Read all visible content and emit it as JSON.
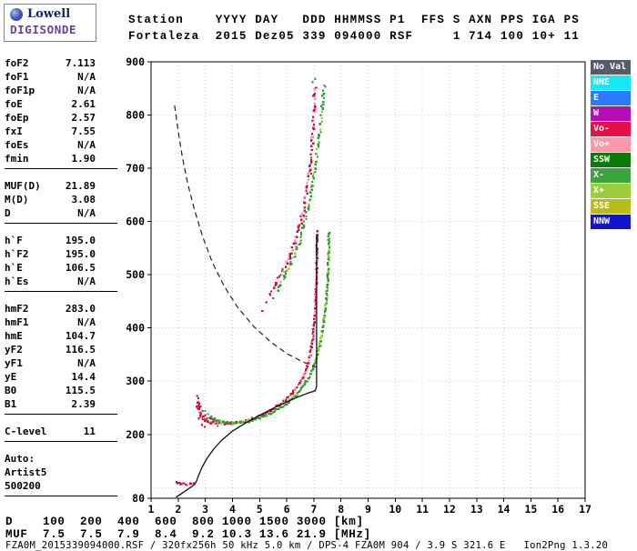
{
  "logo": {
    "brand": "Lowell",
    "product": "DIGISONDE"
  },
  "header": {
    "line1": "Station    YYYY DAY   DDD HHMMSS P1  FFS S AXN PPS IGA PS",
    "line2": "Fortaleza  2015 Dez05 339 094000 RSF     1 714 100 10+ 11"
  },
  "params": {
    "rows": [
      {
        "label": "foF2",
        "value": "7.113"
      },
      {
        "label": "foF1",
        "value": "N/A"
      },
      {
        "label": "foF1p",
        "value": "N/A"
      },
      {
        "label": "foE",
        "value": "2.61"
      },
      {
        "label": "foEp",
        "value": "2.57"
      },
      {
        "label": "fxI",
        "value": "7.55"
      },
      {
        "label": "foEs",
        "value": "N/A"
      },
      {
        "label": "fmin",
        "value": "1.90",
        "rule": true
      },
      {
        "label": "MUF(D)",
        "value": "21.89"
      },
      {
        "label": "M(D)",
        "value": "3.08"
      },
      {
        "label": "D",
        "value": "N/A",
        "rule": true
      },
      {
        "label": "h`F",
        "value": "195.0"
      },
      {
        "label": "h`F2",
        "value": "195.0"
      },
      {
        "label": "h`E",
        "value": "106.5"
      },
      {
        "label": "h`Es",
        "value": "N/A",
        "rule": true
      },
      {
        "label": "hmF2",
        "value": "283.0"
      },
      {
        "label": "hmF1",
        "value": "N/A"
      },
      {
        "label": "hmE",
        "value": "104.7"
      },
      {
        "label": "yF2",
        "value": "116.5"
      },
      {
        "label": "yF1",
        "value": "N/A"
      },
      {
        "label": "yE",
        "value": "14.4"
      },
      {
        "label": "B0",
        "value": "115.5"
      },
      {
        "label": "B1",
        "value": "2.39",
        "rule": true
      },
      {
        "label": "C-level",
        "value": "11",
        "rule": true
      }
    ],
    "auto": [
      "Auto:",
      "Artist5",
      "500200"
    ]
  },
  "legend": [
    {
      "label": "No Val",
      "color": "#565b6b"
    },
    {
      "label": "NNE",
      "color": "#17e7f7"
    },
    {
      "label": "E",
      "color": "#2b7bff"
    },
    {
      "label": "W",
      "color": "#b60cb6"
    },
    {
      "label": "Vo-",
      "color": "#e51046"
    },
    {
      "label": "Vo+",
      "color": "#ff97a6"
    },
    {
      "label": "SSW",
      "color": "#0a7a0a"
    },
    {
      "label": "X-",
      "color": "#3aa53a"
    },
    {
      "label": "X+",
      "color": "#9ccc3c"
    },
    {
      "label": "SSE",
      "color": "#b8bc18"
    },
    {
      "label": "NNW",
      "color": "#1414cc"
    }
  ],
  "chart_data": {
    "type": "scatter",
    "title": "",
    "xlabel": "",
    "ylabel": "",
    "xlim": [
      1,
      17
    ],
    "ylim": [
      80,
      900
    ],
    "xticks": [
      1,
      2,
      3,
      4,
      5,
      6,
      7,
      8,
      9,
      10,
      11,
      12,
      13,
      14,
      15,
      16,
      17
    ],
    "yticks": [
      900,
      800,
      700,
      600,
      500,
      400,
      300,
      200,
      80
    ],
    "grid": true,
    "series": [
      {
        "name": "F-trace-O-mode",
        "color": "#cf0e3f",
        "alt": "#ff8fa6",
        "points": [
          [
            2.72,
            262
          ],
          [
            2.76,
            250
          ],
          [
            2.8,
            240
          ],
          [
            2.87,
            232
          ],
          [
            2.97,
            227
          ],
          [
            3.1,
            224
          ],
          [
            3.35,
            221
          ],
          [
            3.6,
            220
          ],
          [
            3.9,
            220
          ],
          [
            4.2,
            222
          ],
          [
            4.5,
            225
          ],
          [
            4.8,
            230
          ],
          [
            5.1,
            236
          ],
          [
            5.4,
            244
          ],
          [
            5.7,
            254
          ],
          [
            6.0,
            266
          ],
          [
            6.25,
            280
          ],
          [
            6.5,
            298
          ],
          [
            6.7,
            318
          ],
          [
            6.85,
            345
          ],
          [
            6.95,
            376
          ],
          [
            7.02,
            412
          ],
          [
            7.07,
            452
          ],
          [
            7.1,
            496
          ],
          [
            7.12,
            540
          ],
          [
            7.13,
            580
          ]
        ]
      },
      {
        "name": "F-trace-X-mode",
        "color": "#2f9e2f",
        "alt": "#8fc832",
        "points": [
          [
            3.15,
            232
          ],
          [
            3.4,
            226
          ],
          [
            3.7,
            222
          ],
          [
            4.0,
            221
          ],
          [
            4.3,
            222
          ],
          [
            4.6,
            225
          ],
          [
            4.9,
            229
          ],
          [
            5.2,
            235
          ],
          [
            5.5,
            242
          ],
          [
            5.8,
            251
          ],
          [
            6.1,
            262
          ],
          [
            6.4,
            276
          ],
          [
            6.65,
            293
          ],
          [
            6.9,
            315
          ],
          [
            7.1,
            342
          ],
          [
            7.25,
            374
          ],
          [
            7.37,
            412
          ],
          [
            7.46,
            454
          ],
          [
            7.52,
            500
          ],
          [
            7.55,
            545
          ],
          [
            7.56,
            580
          ]
        ]
      },
      {
        "name": "second-hop-O-mode",
        "color": "#cf0e3f",
        "alt": "#ff8fa6",
        "points": [
          [
            5.35,
            462
          ],
          [
            5.6,
            482
          ],
          [
            5.85,
            505
          ],
          [
            6.1,
            532
          ],
          [
            6.3,
            560
          ],
          [
            6.5,
            592
          ],
          [
            6.65,
            628
          ],
          [
            6.78,
            668
          ],
          [
            6.88,
            712
          ],
          [
            6.96,
            760
          ],
          [
            7.02,
            808
          ],
          [
            7.06,
            852
          ]
        ]
      },
      {
        "name": "second-hop-X-mode",
        "color": "#2f9e2f",
        "alt": "#8fc832",
        "points": [
          [
            5.65,
            470
          ],
          [
            5.9,
            495
          ],
          [
            6.15,
            522
          ],
          [
            6.4,
            552
          ],
          [
            6.6,
            586
          ],
          [
            6.78,
            625
          ],
          [
            6.95,
            668
          ],
          [
            7.1,
            715
          ],
          [
            7.22,
            765
          ],
          [
            7.32,
            815
          ],
          [
            7.4,
            858
          ]
        ]
      },
      {
        "name": "E-trace-O-mode",
        "color": "#cf0e3f",
        "alt": "#ff8fa6",
        "points": [
          [
            1.95,
            112
          ],
          [
            2.1,
            108
          ],
          [
            2.3,
            106
          ],
          [
            2.45,
            107
          ],
          [
            2.58,
            110
          ]
        ]
      }
    ],
    "overlays": [
      {
        "name": "muf-transmission-curve",
        "style": "dashed",
        "color": "#222222",
        "points": [
          [
            1.87,
            818
          ],
          [
            2.0,
            770
          ],
          [
            2.15,
            722
          ],
          [
            2.35,
            672
          ],
          [
            2.6,
            622
          ],
          [
            2.9,
            572
          ],
          [
            3.25,
            524
          ],
          [
            3.7,
            478
          ],
          [
            4.2,
            438
          ],
          [
            4.8,
            402
          ],
          [
            5.4,
            374
          ],
          [
            6.0,
            352
          ],
          [
            6.6,
            336
          ],
          [
            7.1,
            326
          ]
        ]
      },
      {
        "name": "true-height-profile",
        "style": "solid",
        "color": "#111111",
        "points": [
          [
            1.92,
            82
          ],
          [
            2.1,
            88
          ],
          [
            2.3,
            95
          ],
          [
            2.5,
            102
          ],
          [
            2.62,
            107
          ],
          [
            2.68,
            113
          ],
          [
            2.76,
            124
          ],
          [
            2.88,
            138
          ],
          [
            3.05,
            154
          ],
          [
            3.3,
            172
          ],
          [
            3.6,
            189
          ],
          [
            4.0,
            206
          ],
          [
            4.5,
            222
          ],
          [
            5.0,
            236
          ],
          [
            5.5,
            249
          ],
          [
            6.0,
            261
          ],
          [
            6.4,
            270
          ],
          [
            6.8,
            278
          ],
          [
            7.05,
            282
          ],
          [
            7.1,
            290
          ],
          [
            7.1,
            575
          ]
        ]
      }
    ],
    "speckles": [
      {
        "color": "#cf0e3f",
        "points": [
          [
            2.7,
            272
          ],
          [
            2.74,
            268
          ],
          [
            2.78,
            258
          ],
          [
            2.68,
            252
          ],
          [
            2.82,
            252
          ],
          [
            2.9,
            244
          ],
          [
            2.84,
            238
          ],
          [
            2.76,
            230
          ],
          [
            2.92,
            234
          ],
          [
            3.0,
            236
          ],
          [
            3.06,
            230
          ],
          [
            2.88,
            218
          ],
          [
            2.98,
            214
          ],
          [
            3.2,
            230
          ],
          [
            3.3,
            226
          ],
          [
            5.1,
            432
          ],
          [
            5.25,
            448
          ],
          [
            6.9,
            690
          ],
          [
            7.0,
            782
          ],
          [
            6.98,
            836
          ]
        ]
      },
      {
        "color": "#2f9e2f",
        "points": [
          [
            3.0,
            244
          ],
          [
            3.1,
            238
          ],
          [
            3.22,
            234
          ],
          [
            3.35,
            230
          ],
          [
            3.5,
            224
          ],
          [
            3.05,
            228
          ],
          [
            3.15,
            222
          ],
          [
            3.45,
            216
          ],
          [
            5.5,
            456
          ],
          [
            5.75,
            478
          ],
          [
            6.2,
            540
          ],
          [
            6.85,
            640
          ],
          [
            7.05,
            700
          ],
          [
            6.95,
            862
          ],
          [
            7.05,
            868
          ],
          [
            5.95,
            505
          ]
        ]
      }
    ]
  },
  "footer": {
    "d_row": "D    100  200  400  600  800 1000 1500 3000 [km]",
    "muf_row": "MUF  7.5  7.5  7.9  8.4  9.2 10.3 13.6 21.9 [MHz]",
    "status": "FZA0M_2015339094000.RSF / 320fx256h 50 kHz 5.0 km / DPS-4 FZA0M 904 / 3.9 S 321.6 E   Ion2Png 1.3.20"
  }
}
